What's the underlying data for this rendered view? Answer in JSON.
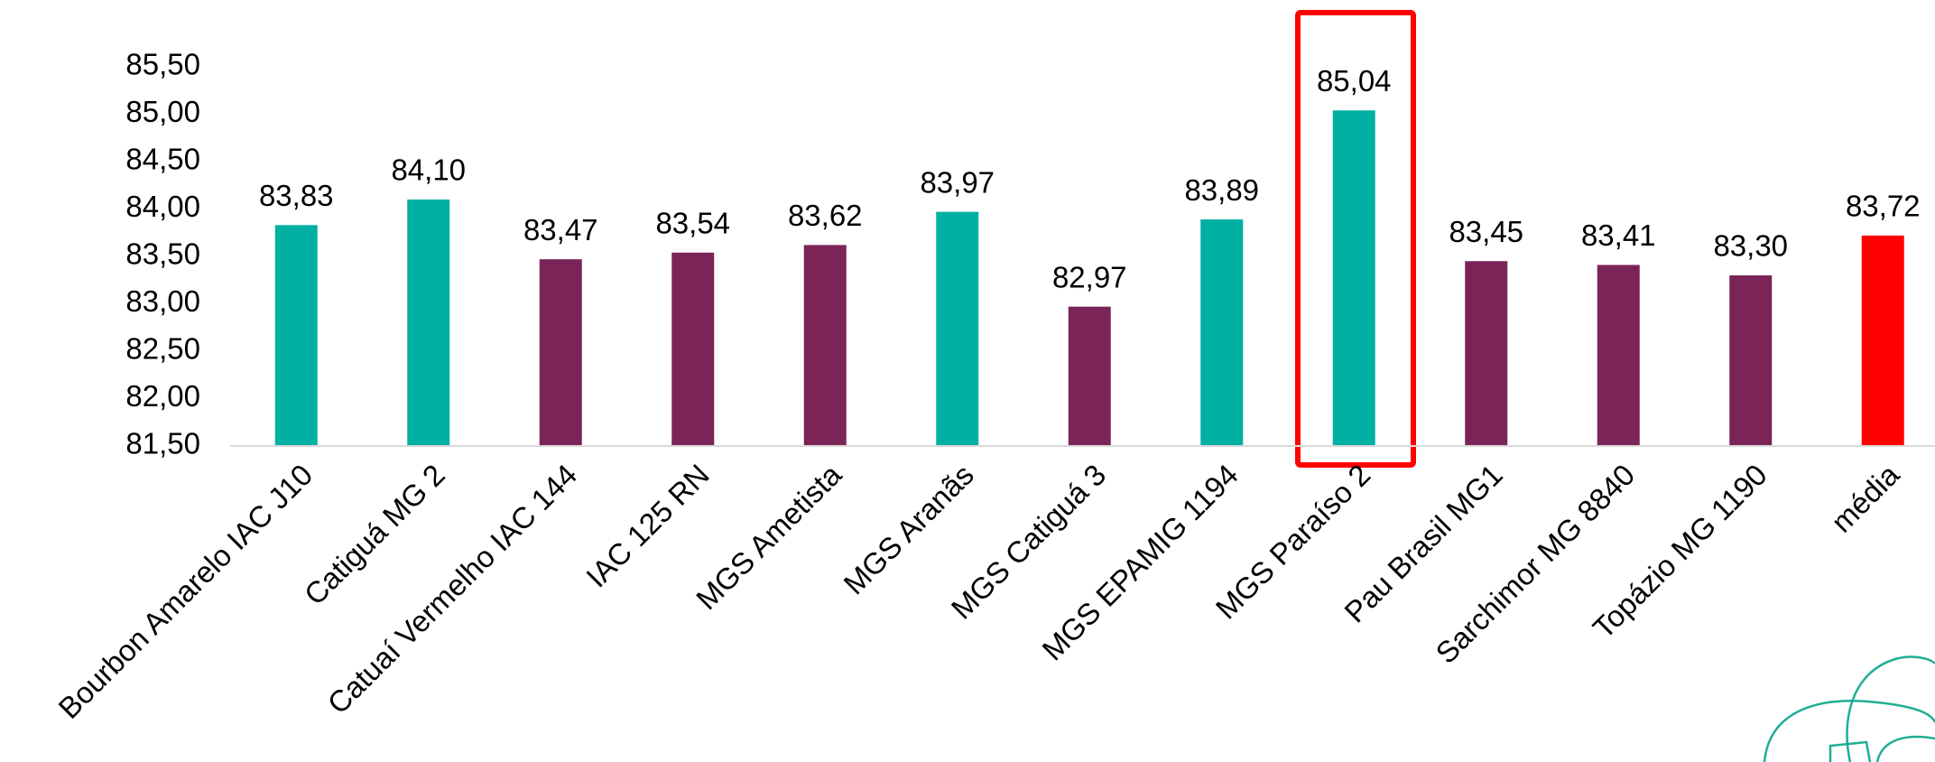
{
  "chart_data": {
    "type": "bar",
    "categories": [
      "Bourbon Amarelo IAC J10",
      "Catiguá MG 2",
      "Catuaí Vermelho IAC 144",
      "IAC 125 RN",
      "MGS Ametista",
      "MGS Aranãs",
      "MGS Catiguá 3",
      "MGS EPAMIG 1194",
      "MGS Paraíso 2",
      "Pau Brasil MG1",
      "Sarchimor MG 8840",
      "Topázio MG 1190",
      "média"
    ],
    "values": [
      83.83,
      84.1,
      83.47,
      83.54,
      83.62,
      83.97,
      82.97,
      83.89,
      85.04,
      83.45,
      83.41,
      83.3,
      83.72
    ],
    "value_labels": [
      "83,83",
      "84,10",
      "83,47",
      "83,54",
      "83,62",
      "83,97",
      "82,97",
      "83,89",
      "85,04",
      "83,45",
      "83,41",
      "83,30",
      "83,72"
    ],
    "colors": [
      "#00b0a3",
      "#00b0a3",
      "#7b2457",
      "#7b2457",
      "#7b2457",
      "#00b0a3",
      "#7b2457",
      "#00b0a3",
      "#00b0a3",
      "#7b2457",
      "#7b2457",
      "#7b2457",
      "#ff0000"
    ],
    "ylim": [
      81.5,
      85.5
    ],
    "yticks": [
      {
        "value": 81.5,
        "label": "81,50"
      },
      {
        "value": 82,
        "label": "82,00"
      },
      {
        "value": 82.5,
        "label": "82,50"
      },
      {
        "value": 83,
        "label": "83,00"
      },
      {
        "value": 83.5,
        "label": "83,50"
      },
      {
        "value": 84,
        "label": "84,00"
      },
      {
        "value": 84.5,
        "label": "84,50"
      },
      {
        "value": 85,
        "label": "85,00"
      },
      {
        "value": 85.5,
        "label": "85,50"
      }
    ],
    "grid": false
  }
}
